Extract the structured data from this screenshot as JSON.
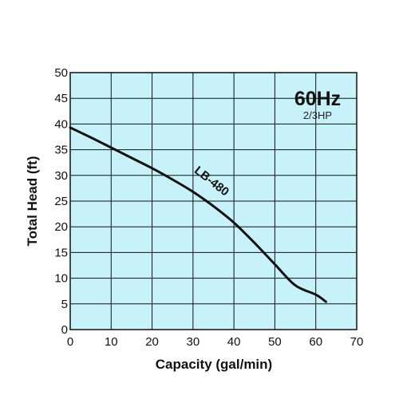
{
  "chart_data": {
    "type": "line",
    "xlabel": "Capacity (gal/min)",
    "ylabel": "Total Head (ft)",
    "xlim": [
      0,
      70
    ],
    "ylim": [
      0,
      50
    ],
    "x_ticks": [
      "0",
      "10",
      "20",
      "30",
      "40",
      "50",
      "60",
      "70"
    ],
    "y_ticks": [
      "0",
      "5",
      "10",
      "15",
      "20",
      "25",
      "30",
      "35",
      "40",
      "45",
      "50"
    ],
    "grid": true,
    "colors": {
      "plot_background": "#c8f2fa",
      "grid": "#111111",
      "curve": "#111111"
    },
    "annotations": {
      "frequency": "60Hz",
      "power": "2/3HP"
    },
    "series": [
      {
        "name": "LB-480",
        "x": [
          0,
          5,
          10,
          15,
          20,
          25,
          30,
          35,
          40,
          45,
          50,
          55,
          60,
          62.5
        ],
        "y": [
          39.3,
          37.4,
          35.4,
          33.4,
          31.4,
          29.2,
          26.8,
          24.0,
          20.8,
          16.9,
          12.7,
          8.6,
          6.8,
          5.4
        ]
      }
    ]
  }
}
